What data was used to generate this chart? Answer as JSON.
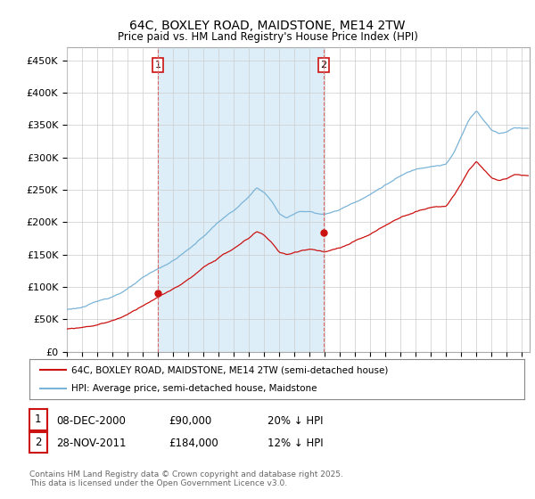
{
  "title": "64C, BOXLEY ROAD, MAIDSTONE, ME14 2TW",
  "subtitle": "Price paid vs. HM Land Registry's House Price Index (HPI)",
  "ylabel_ticks": [
    "£0",
    "£50K",
    "£100K",
    "£150K",
    "£200K",
    "£250K",
    "£300K",
    "£350K",
    "£400K",
    "£450K"
  ],
  "ytick_values": [
    0,
    50000,
    100000,
    150000,
    200000,
    250000,
    300000,
    350000,
    400000,
    450000
  ],
  "ylim": [
    0,
    470000
  ],
  "xlim_start": 1995.0,
  "xlim_end": 2025.5,
  "xtick_years": [
    1995,
    1996,
    1997,
    1998,
    1999,
    2000,
    2001,
    2002,
    2003,
    2004,
    2005,
    2006,
    2007,
    2008,
    2009,
    2010,
    2011,
    2012,
    2013,
    2014,
    2015,
    2016,
    2017,
    2018,
    2019,
    2020,
    2021,
    2022,
    2023,
    2024,
    2025
  ],
  "hpi_color": "#7ab4d8",
  "price_color": "#cc1111",
  "vline_color": "#dd6666",
  "vline_dates": [
    2001.0,
    2011.92
  ],
  "shade_color": "#ddeef8",
  "transaction1": {
    "label": "1",
    "date": "08-DEC-2000",
    "price": "£90,000",
    "hpi_diff": "20% ↓ HPI"
  },
  "transaction2": {
    "label": "2",
    "date": "28-NOV-2011",
    "price": "£184,000",
    "hpi_diff": "12% ↓ HPI"
  },
  "legend_line1": "64C, BOXLEY ROAD, MAIDSTONE, ME14 2TW (semi-detached house)",
  "legend_line2": "HPI: Average price, semi-detached house, Maidstone",
  "footnote": "Contains HM Land Registry data © Crown copyright and database right 2025.\nThis data is licensed under the Open Government Licence v3.0.",
  "bg_color": "#ffffff",
  "plot_bg_color": "#ffffff",
  "grid_color": "#cccccc"
}
